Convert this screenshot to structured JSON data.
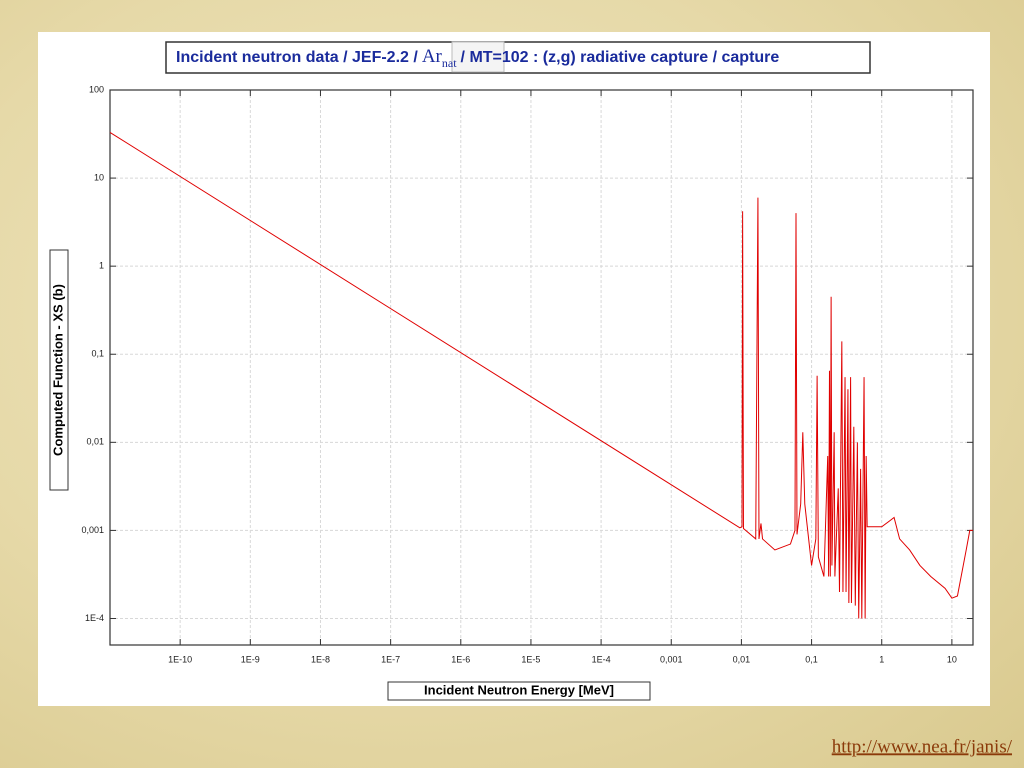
{
  "slide": {
    "url": "http://www.nea.fr/janis/"
  },
  "chart_data": {
    "type": "line",
    "title": {
      "before": "Incident neutron data / JEF-2.2 /",
      "element": "Ar",
      "subscript": "nat",
      "after": "/ MT=102 : (z,g) radiative capture / capture"
    },
    "x_label": "Incident Neutron Energy [MeV]",
    "y_label": "Computed Function - XS (b)",
    "xscale": "log",
    "yscale": "log",
    "grid": true,
    "xlim": [
      1e-11,
      20
    ],
    "ylim": [
      5e-05,
      100
    ],
    "xticks": [
      {
        "value": 1e-10,
        "label": "1E-10"
      },
      {
        "value": 1e-09,
        "label": "1E-9"
      },
      {
        "value": 1e-08,
        "label": "1E-8"
      },
      {
        "value": 1e-07,
        "label": "1E-7"
      },
      {
        "value": 1e-06,
        "label": "1E-6"
      },
      {
        "value": 1e-05,
        "label": "1E-5"
      },
      {
        "value": 0.0001,
        "label": "1E-4"
      },
      {
        "value": 0.001,
        "label": "0,001"
      },
      {
        "value": 0.01,
        "label": "0,01"
      },
      {
        "value": 0.1,
        "label": "0,1"
      },
      1,
      10
    ],
    "yticks": [
      {
        "value": 0.0001,
        "label": "1E-4"
      },
      {
        "value": 0.001,
        "label": "0,001"
      },
      {
        "value": 0.01,
        "label": "0,01"
      },
      {
        "value": 0.1,
        "label": "0,1"
      },
      1,
      10,
      100
    ],
    "x": [
      1e-11,
      0.0095,
      0.0102,
      0.0104,
      0.0107,
      0.016,
      0.0172,
      0.0178,
      0.019,
      0.02,
      0.03,
      0.05,
      0.058,
      0.06,
      0.062,
      0.07,
      0.075,
      0.08,
      0.1,
      0.115,
      0.12,
      0.125,
      0.15,
      0.17,
      0.175,
      0.18,
      0.185,
      0.19,
      0.195,
      0.21,
      0.215,
      0.24,
      0.25,
      0.27,
      0.28,
      0.3,
      0.31,
      0.33,
      0.34,
      0.36,
      0.37,
      0.4,
      0.42,
      0.45,
      0.47,
      0.5,
      0.52,
      0.56,
      0.58,
      0.6,
      0.62,
      1.0,
      1.5,
      1.8,
      2.5,
      3.5,
      5,
      8,
      10,
      12,
      16,
      18,
      20
    ],
    "series": [
      {
        "color": "#e00000",
        "values": [
          33,
          0.00107,
          0.0011,
          4.2,
          0.00105,
          0.0008,
          6,
          0.0008,
          0.0012,
          0.0008,
          0.0006,
          0.0007,
          0.001,
          4,
          0.0009,
          0.002,
          0.013,
          0.002,
          0.0004,
          0.0008,
          0.057,
          0.0005,
          0.0003,
          0.007,
          0.0003,
          0.065,
          0.0003,
          0.45,
          0.0004,
          0.013,
          0.0003,
          0.003,
          0.0002,
          0.14,
          0.0002,
          0.055,
          0.0002,
          0.04,
          0.00015,
          0.055,
          0.00015,
          0.015,
          0.00014,
          0.01,
          0.0001,
          0.005,
          0.0001,
          0.055,
          0.0001,
          0.007,
          0.0011,
          0.0011,
          0.0014,
          0.0008,
          0.0006,
          0.0004,
          0.0003,
          0.00022,
          0.00017,
          0.00018,
          0.0006,
          0.001,
          0.001
        ]
      }
    ]
  }
}
